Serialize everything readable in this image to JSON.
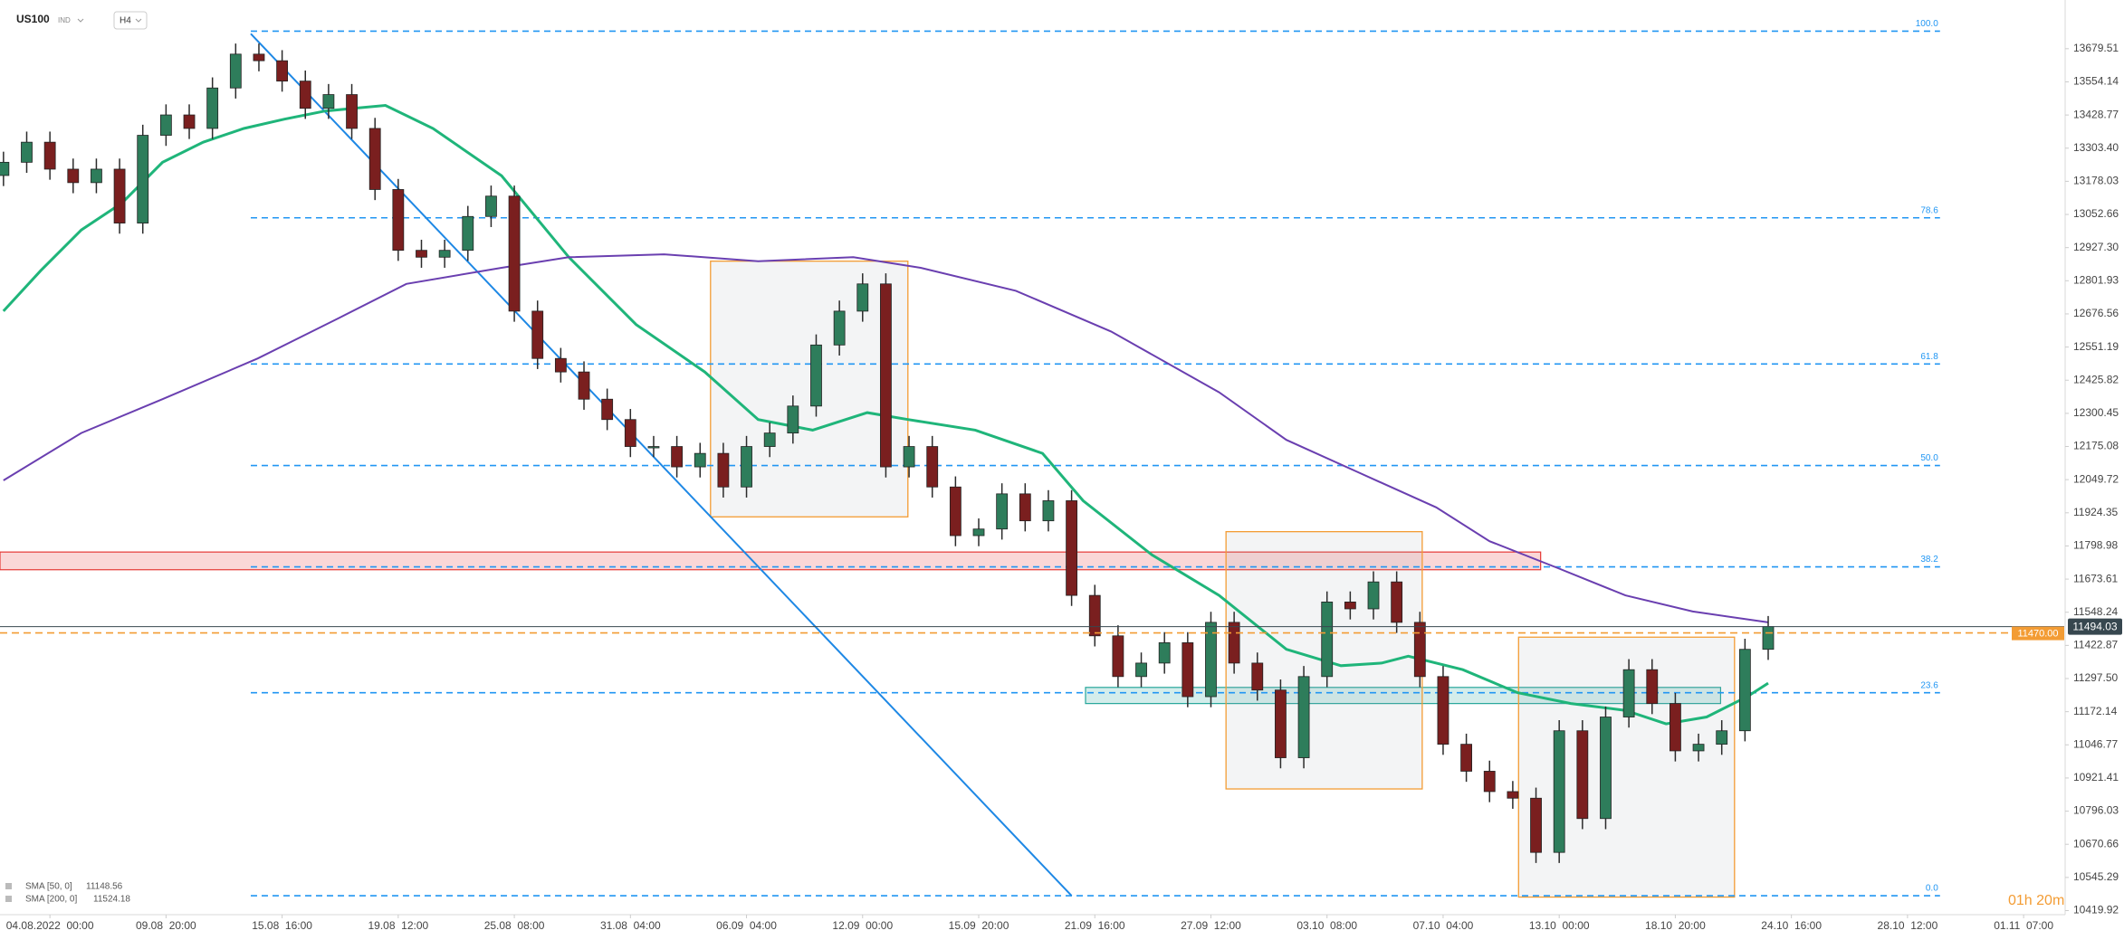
{
  "chart_data": {
    "type": "candlestick",
    "symbol": "US100",
    "market": "IND",
    "timeframe": "H4",
    "up_color": "#2e7d5b",
    "down_color": "#7a1f1f",
    "xlim": [
      -0.43,
      17.35
    ],
    "ylim": [
      10404.5,
      13863.7
    ],
    "xticks": [
      {
        "value": 0,
        "label": "04.08.2022  00:00"
      },
      {
        "value": 1,
        "label": "09.08  20:00"
      },
      {
        "value": 2,
        "label": "15.08  16:00"
      },
      {
        "value": 3,
        "label": "19.08  12:00"
      },
      {
        "value": 4,
        "label": "25.08  08:00"
      },
      {
        "value": 5,
        "label": "31.08  04:00"
      },
      {
        "value": 6,
        "label": "06.09  04:00"
      },
      {
        "value": 7,
        "label": "12.09  00:00"
      },
      {
        "value": 8,
        "label": "15.09  20:00"
      },
      {
        "value": 9,
        "label": "21.09  16:00"
      },
      {
        "value": 10,
        "label": "27.09  12:00"
      },
      {
        "value": 11,
        "label": "03.10  08:00"
      },
      {
        "value": 12,
        "label": "07.10  04:00"
      },
      {
        "value": 13,
        "label": "13.10  00:00"
      },
      {
        "value": 14,
        "label": "18.10  20:00"
      },
      {
        "value": 15,
        "label": "24.10  16:00"
      },
      {
        "value": 16,
        "label": "28.10  12:00"
      },
      {
        "value": 17,
        "label": "01.11  07:00"
      }
    ],
    "yticks": [
      13679.51,
      13554.14,
      13428.77,
      {
        "value": 13303.4,
        "label": "13303.40"
      },
      13178.03,
      13052.66,
      {
        "value": 12927.3,
        "label": "12927.30"
      },
      12801.93,
      12676.56,
      12551.19,
      12425.82,
      12300.45,
      12175.08,
      12049.72,
      11924.35,
      11798.98,
      11673.61,
      11548.24,
      11422.87,
      {
        "value": 11297.5,
        "label": "11297.50"
      },
      11172.14,
      11046.77,
      10921.41,
      10796.03,
      10670.66,
      10545.29,
      10419.92
    ],
    "x": [
      -0.4,
      -0.2,
      0,
      0.2,
      0.4,
      0.6,
      0.8,
      1,
      1.2,
      1.4,
      1.6,
      1.8,
      2,
      2.2,
      2.4,
      2.6,
      2.8,
      3,
      3.2,
      3.4,
      3.6,
      3.8,
      4,
      4.2,
      4.4,
      4.6,
      4.8,
      5,
      5.2,
      5.4,
      5.6,
      5.8,
      6,
      6.2,
      6.4,
      6.6,
      6.8,
      7,
      7.2,
      7.4,
      7.6,
      7.8,
      8,
      8.2,
      8.4,
      8.6,
      8.8,
      9,
      9.2,
      9.4,
      9.6,
      9.8,
      10,
      10.2,
      10.4,
      10.6,
      10.8,
      11,
      11.2,
      11.4,
      11.6,
      11.8,
      12,
      12.2,
      12.4,
      12.6,
      12.8,
      13,
      13.2,
      13.4,
      13.6,
      13.8,
      14,
      14.2,
      14.4,
      14.6,
      14.8
    ],
    "open": [
      13200,
      13250,
      13326,
      13224,
      13173,
      13224,
      13020,
      13352,
      13429,
      13378,
      13531,
      13659,
      13634,
      13557,
      13454,
      13506,
      13378,
      13147,
      12917,
      12891,
      12917,
      13045,
      13122,
      12687,
      12508,
      12457,
      12354,
      12277,
      12175,
      12175,
      12098,
      12149,
      12022,
      12175,
      12226,
      12328,
      12559,
      12687,
      12790,
      12098,
      12175,
      12022,
      11838,
      11863,
      11996,
      11894,
      11970,
      11612,
      11459,
      11305,
      11356,
      11433,
      11229,
      11510,
      11356,
      11254,
      10998,
      11305,
      11587,
      11561,
      11663,
      11510,
      11305,
      11049,
      10947,
      10870,
      10845,
      10640,
      11100,
      10768,
      11152,
      11331,
      11203,
      11024,
      11049,
      11100,
      11408
    ],
    "high": [
      13290,
      13366,
      13366,
      13264,
      13264,
      13264,
      13392,
      13469,
      13469,
      13571,
      13699,
      13699,
      13674,
      13597,
      13546,
      13546,
      13418,
      13187,
      12957,
      12957,
      13085,
      13162,
      13162,
      12727,
      12548,
      12497,
      12394,
      12317,
      12215,
      12215,
      12189,
      12189,
      12215,
      12266,
      12368,
      12599,
      12727,
      12830,
      12830,
      12215,
      12215,
      12062,
      11903,
      12036,
      12036,
      12010,
      12010,
      11652,
      11499,
      11396,
      11473,
      11473,
      11550,
      11550,
      11396,
      11294,
      11345,
      11627,
      11627,
      11703,
      11703,
      11550,
      11345,
      11089,
      10987,
      10910,
      10885,
      11140,
      11140,
      11192,
      11371,
      11371,
      11243,
      11089,
      11140,
      11448,
      11534
    ],
    "low": [
      13160,
      13210,
      13184,
      13133,
      13133,
      12980,
      12980,
      13312,
      13338,
      13338,
      13491,
      13594,
      13517,
      13414,
      13414,
      13338,
      13107,
      12877,
      12851,
      12851,
      12877,
      13005,
      12647,
      12468,
      12417,
      12314,
      12237,
      12135,
      12135,
      12058,
      12058,
      11982,
      11982,
      12135,
      12186,
      12288,
      12519,
      12647,
      12058,
      12058,
      11982,
      11798,
      11798,
      11823,
      11854,
      11854,
      11572,
      11419,
      11265,
      11265,
      11316,
      11189,
      11189,
      11316,
      11214,
      10958,
      10958,
      11265,
      11521,
      11521,
      11470,
      11265,
      11009,
      10907,
      10830,
      10805,
      10600,
      10600,
      10728,
      10728,
      11112,
      11163,
      10984,
      10984,
      11009,
      11060,
      11368
    ],
    "close": [
      13250,
      13326,
      13224,
      13173,
      13224,
      13020,
      13352,
      13429,
      13378,
      13531,
      13659,
      13634,
      13557,
      13454,
      13506,
      13378,
      13147,
      12917,
      12891,
      12917,
      13045,
      13122,
      12687,
      12508,
      12457,
      12354,
      12277,
      12175,
      12175,
      12098,
      12149,
      12022,
      12175,
      12226,
      12328,
      12559,
      12687,
      12790,
      12098,
      12175,
      12022,
      11838,
      11863,
      11996,
      11894,
      11970,
      11612,
      11459,
      11305,
      11356,
      11433,
      11229,
      11510,
      11356,
      11254,
      10998,
      11305,
      11587,
      11561,
      11663,
      11510,
      11305,
      11049,
      10947,
      10870,
      10845,
      10640,
      11100,
      10768,
      11152,
      11331,
      11203,
      11024,
      11049,
      11100,
      11408,
      11494
    ],
    "indicators": [
      {
        "name": "SMA [50, 0]",
        "last": 11148.56,
        "color": "#1fb57a",
        "x": [
          -0.4,
          -0.08,
          0.27,
          0.62,
          0.97,
          1.32,
          1.67,
          2.02,
          2.37,
          2.89,
          3.3,
          3.89,
          4.47,
          5.05,
          5.64,
          6.1,
          6.57,
          7.04,
          7.39,
          7.97,
          8.55,
          8.9,
          9.49,
          10.07,
          10.65,
          11.12,
          11.47,
          11.7,
          12.17,
          12.64,
          13.1,
          13.57,
          13.92,
          14.27,
          14.62,
          14.8
        ],
        "values": [
          12687,
          12840,
          12994,
          13096,
          13250,
          13326,
          13378,
          13413,
          13444,
          13465,
          13378,
          13199,
          12891,
          12636,
          12457,
          12277,
          12237,
          12303,
          12277,
          12237,
          12149,
          11970,
          11766,
          11612,
          11408,
          11346,
          11356,
          11382,
          11331,
          11244,
          11203,
          11177,
          11126,
          11152,
          11229,
          11280
        ]
      },
      {
        "name": "SMA [200, 0]",
        "last": 11524.18,
        "color": "#6a3fb0",
        "x": [
          -0.4,
          0.27,
          0.97,
          1.79,
          2.49,
          3.07,
          3.89,
          4.47,
          5.29,
          6.1,
          6.92,
          7.5,
          8.32,
          9.14,
          10.07,
          10.65,
          11.24,
          11.94,
          12.4,
          12.99,
          13.57,
          14.15,
          14.8
        ],
        "values": [
          12047,
          12226,
          12354,
          12508,
          12661,
          12790,
          12851,
          12891,
          12902,
          12876,
          12891,
          12851,
          12764,
          12610,
          12380,
          12200,
          12083,
          11945,
          11817,
          11715,
          11612,
          11551,
          11510
        ]
      }
    ],
    "fib_x": [
      1.73,
      16.28
    ],
    "fib_color": "#2196f3",
    "fib_levels": [
      {
        "label": "100.0",
        "value": 13746
      },
      {
        "label": "78.6",
        "value": 13040
      },
      {
        "label": "61.8",
        "value": 12487
      },
      {
        "label": "50.0",
        "value": 12103
      },
      {
        "label": "38.2",
        "value": 11720
      },
      {
        "label": "23.6",
        "value": 11244
      },
      {
        "label": "0.0",
        "value": 10476
      }
    ],
    "trendline": {
      "x": [
        1.73,
        8.8
      ],
      "y": [
        13736,
        10476
      ],
      "color": "#1e88e5"
    },
    "zones": [
      {
        "x": [
          -0.43,
          12.84
        ],
        "y": [
          11709,
          11776
        ],
        "color": "#e53935"
      },
      {
        "x": [
          8.92,
          14.39
        ],
        "y": [
          11203,
          11264
        ],
        "color": "#26a69a"
      }
    ],
    "boxes": [
      {
        "x": [
          5.69,
          7.39
        ],
        "y": [
          11909,
          12876
        ]
      },
      {
        "x": [
          10.13,
          11.82
        ],
        "y": [
          10880,
          11853
        ]
      },
      {
        "x": [
          12.65,
          14.51
        ],
        "y": [
          10471,
          11454
        ]
      }
    ],
    "box_color": "#f39c34",
    "price_line": 11494.03,
    "order_line": {
      "value": 11470,
      "label": "11470.00"
    },
    "countdown": "01h 20m"
  }
}
